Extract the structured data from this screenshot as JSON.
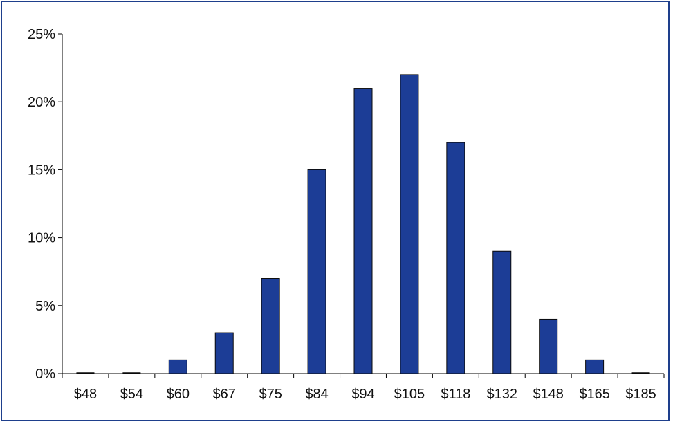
{
  "chart_data": {
    "type": "bar",
    "categories": [
      "$48",
      "$54",
      "$60",
      "$67",
      "$75",
      "$84",
      "$94",
      "$105",
      "$118",
      "$132",
      "$148",
      "$165",
      "$185"
    ],
    "values": [
      0,
      0,
      1,
      3,
      7,
      15,
      21,
      22,
      17,
      9,
      4,
      1,
      0
    ],
    "ylim": [
      0,
      25
    ],
    "yticks": [
      0,
      5,
      10,
      15,
      20,
      25
    ],
    "ytick_labels": [
      "0%",
      "5%",
      "10%",
      "15%",
      "20%",
      "25%"
    ],
    "title": "",
    "xlabel": "",
    "ylabel": "",
    "grid": false,
    "legend": "none",
    "colors": {
      "bar": "#1c3d96",
      "bar_edge": "#0a0a0a",
      "frame": "#1e3f8c",
      "axis": "#000000"
    }
  }
}
